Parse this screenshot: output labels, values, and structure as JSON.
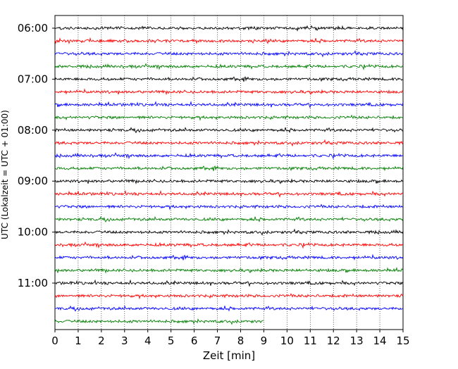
{
  "chart_data": {
    "type": "line",
    "xlabel": "Zeit  [min]",
    "ylabel": "UTC (Lokalzeit = UTC + 01:00)",
    "xlim": [
      0,
      15
    ],
    "x_ticks": [
      "0",
      "1",
      "2",
      "3",
      "4",
      "5",
      "6",
      "7",
      "8",
      "9",
      "10",
      "11",
      "12",
      "13",
      "14",
      "15"
    ],
    "y_ticks": [
      "06:00",
      "07:00",
      "08:00",
      "09:00",
      "10:00",
      "11:00"
    ],
    "grid": "vertical dotted lines at each minute",
    "row_interval_min": 15,
    "rows": [
      {
        "start": "06:00",
        "color": "#000000",
        "duration_min": 15
      },
      {
        "start": "06:15",
        "color": "#ff0000",
        "duration_min": 15
      },
      {
        "start": "06:30",
        "color": "#0000ff",
        "duration_min": 15
      },
      {
        "start": "06:45",
        "color": "#007f00",
        "duration_min": 15
      },
      {
        "start": "07:00",
        "color": "#000000",
        "duration_min": 15
      },
      {
        "start": "07:15",
        "color": "#ff0000",
        "duration_min": 15
      },
      {
        "start": "07:30",
        "color": "#0000ff",
        "duration_min": 15
      },
      {
        "start": "07:45",
        "color": "#007f00",
        "duration_min": 15
      },
      {
        "start": "08:00",
        "color": "#000000",
        "duration_min": 15
      },
      {
        "start": "08:15",
        "color": "#ff0000",
        "duration_min": 15
      },
      {
        "start": "08:30",
        "color": "#0000ff",
        "duration_min": 15
      },
      {
        "start": "08:45",
        "color": "#007f00",
        "duration_min": 15
      },
      {
        "start": "09:00",
        "color": "#000000",
        "duration_min": 15
      },
      {
        "start": "09:15",
        "color": "#ff0000",
        "duration_min": 15
      },
      {
        "start": "09:30",
        "color": "#0000ff",
        "duration_min": 15
      },
      {
        "start": "09:45",
        "color": "#007f00",
        "duration_min": 15
      },
      {
        "start": "10:00",
        "color": "#000000",
        "duration_min": 15
      },
      {
        "start": "10:15",
        "color": "#ff0000",
        "duration_min": 15
      },
      {
        "start": "10:30",
        "color": "#0000ff",
        "duration_min": 15
      },
      {
        "start": "10:45",
        "color": "#007f00",
        "duration_min": 15
      },
      {
        "start": "11:00",
        "color": "#000000",
        "duration_min": 15
      },
      {
        "start": "11:15",
        "color": "#ff0000",
        "duration_min": 15
      },
      {
        "start": "11:30",
        "color": "#0000ff",
        "duration_min": 15
      },
      {
        "start": "11:45",
        "color": "#007f00",
        "duration_min": 9
      }
    ]
  }
}
